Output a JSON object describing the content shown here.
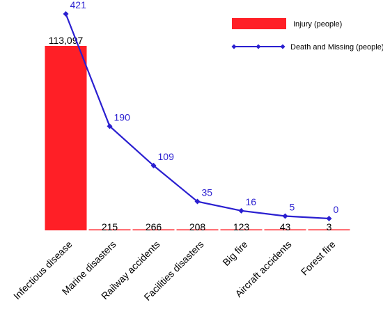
{
  "chart_data": {
    "type": "bar",
    "categories": [
      "Infectious disease",
      "Marine disasters",
      "Railway accidents",
      "Facilities disasters",
      "Big fire",
      "Aircraft accidents",
      "Forest fire"
    ],
    "series": [
      {
        "name": "Injury (people)",
        "type": "bar",
        "axis": "left",
        "values": [
          113097,
          215,
          266,
          208,
          123,
          43,
          3
        ],
        "labels": [
          "113,097",
          "215",
          "266",
          "208",
          "123",
          "43",
          "3"
        ],
        "color": "#ff1f26"
      },
      {
        "name": "Death and Missing (people)",
        "type": "line",
        "axis": "right",
        "values": [
          421,
          190,
          109,
          35,
          16,
          5,
          0
        ],
        "labels": [
          "421",
          "190",
          "109",
          "35",
          "16",
          "5",
          "0"
        ],
        "color": "#2a1fd0"
      }
    ],
    "left_axis": {
      "visible": false,
      "ylim": [
        0,
        140000
      ]
    },
    "right_axis": {
      "visible": false,
      "ylim": [
        -5,
        425
      ]
    },
    "grid": false,
    "legend": {
      "position": "top-right",
      "entries": [
        "Injury (people)",
        "Death and Missing (people)"
      ]
    }
  }
}
